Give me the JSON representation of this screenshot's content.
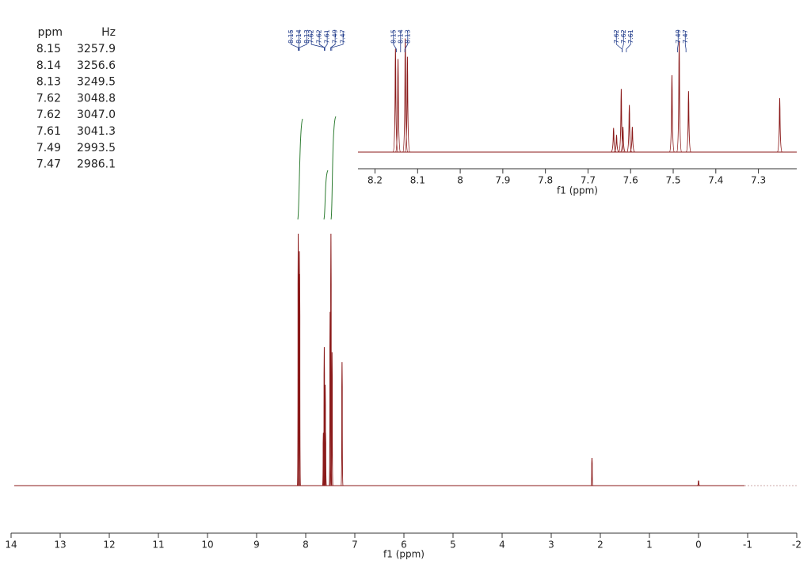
{
  "peak_table": {
    "headers": [
      "ppm",
      "Hz"
    ],
    "rows": [
      [
        "8.15",
        "3257.9"
      ],
      [
        "8.14",
        "3256.6"
      ],
      [
        "8.13",
        "3249.5"
      ],
      [
        "7.62",
        "3048.8"
      ],
      [
        "7.62",
        "3047.0"
      ],
      [
        "7.61",
        "3041.3"
      ],
      [
        "7.49",
        "2993.5"
      ],
      [
        "7.47",
        "2986.1"
      ]
    ]
  },
  "chart_data": [
    {
      "type": "spectrum",
      "x_label": "f1 (ppm)",
      "x": [
        8.152,
        8.146,
        8.129,
        8.124,
        7.64,
        7.633,
        7.622,
        7.618,
        7.603,
        7.596,
        7.503,
        7.486,
        7.464,
        7.26,
        2.17,
        0
      ],
      "values": [
        100,
        84,
        93,
        84,
        21,
        15,
        55,
        40,
        40,
        21,
        69,
        100,
        53,
        49,
        11,
        2
      ],
      "xlim": [
        14,
        -2
      ],
      "xticks": [
        14,
        13,
        12,
        11,
        10,
        9,
        8,
        7,
        6,
        5,
        4,
        3,
        2,
        1,
        0,
        -1,
        -2
      ],
      "ylim": [
        0,
        100
      ],
      "color": "#8b1a1a",
      "peak_labels": [
        8.15,
        8.14,
        8.13,
        7.62,
        7.62,
        7.61,
        7.49,
        7.47
      ],
      "peak_label_color": "#1f3a8a"
    },
    {
      "type": "spectrum",
      "x_label": "f1 (ppm)",
      "x": [
        8.152,
        8.146,
        8.129,
        8.124,
        7.64,
        7.633,
        7.622,
        7.618,
        7.603,
        7.596,
        7.503,
        7.486,
        7.464,
        7.25
      ],
      "values": [
        90,
        81,
        99,
        83,
        21,
        15,
        55,
        22,
        41,
        22,
        67,
        97,
        53,
        47
      ],
      "xlim": [
        8.24,
        7.21
      ],
      "xticks": [
        8.2,
        8.1,
        8.0,
        7.9,
        7.8,
        7.7,
        7.6,
        7.5,
        7.4,
        7.3
      ],
      "ylim": [
        0,
        100
      ],
      "color": "#8b1a1a",
      "peak_labels": [
        8.15,
        8.14,
        8.13,
        7.62,
        7.62,
        7.61,
        7.49,
        7.47
      ],
      "peak_label_color": "#1f3a8a"
    }
  ]
}
